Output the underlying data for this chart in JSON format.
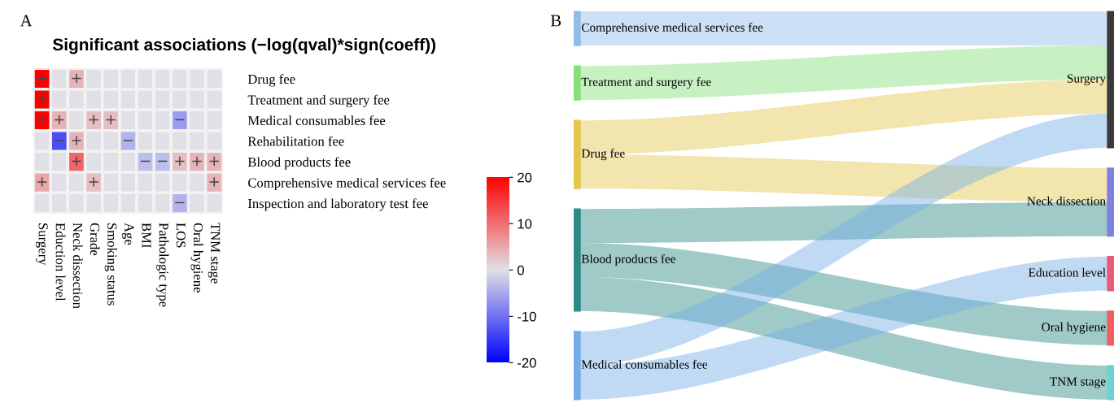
{
  "chart_data": [
    {
      "type": "heatmap",
      "title": "Significant associations (−log(qval)*sign(coeff))",
      "annotations": [
        "A"
      ],
      "categories": [
        "Surgery",
        "Eduction level",
        "Neck dissection",
        "Grade",
        "Smoking status",
        "Age",
        "BMI",
        "Pathologic type",
        "LOS",
        "Oral hygiene",
        "TNM stage"
      ],
      "y_categories": [
        "Drug fee",
        "Treatment and surgery fee",
        "Medical consumables fee",
        "Rehabilitation fee",
        "Blood products fee",
        "Comprehensive medical services fee",
        "Inspection and laboratory test fee"
      ],
      "cells": [
        [
          20,
          null,
          4,
          null,
          null,
          null,
          null,
          null,
          null,
          null,
          null
        ],
        [
          20,
          null,
          null,
          null,
          null,
          null,
          null,
          null,
          null,
          null,
          null
        ],
        [
          20,
          4,
          null,
          3,
          3,
          null,
          null,
          null,
          -6,
          null,
          null
        ],
        [
          null,
          -13,
          4,
          null,
          null,
          -4,
          null,
          null,
          null,
          null,
          null
        ],
        [
          null,
          null,
          11,
          null,
          null,
          null,
          -3,
          -3,
          3,
          4,
          4
        ],
        [
          5,
          null,
          null,
          3,
          null,
          null,
          null,
          null,
          null,
          null,
          4
        ],
        [
          null,
          null,
          null,
          null,
          null,
          null,
          null,
          null,
          -4,
          null,
          null
        ]
      ],
      "cell_labels": [
        [
          "+",
          null,
          "+",
          null,
          null,
          null,
          null,
          null,
          null,
          null,
          null
        ],
        [
          "+",
          null,
          null,
          null,
          null,
          null,
          null,
          null,
          null,
          null,
          null
        ],
        [
          "+",
          "+",
          null,
          "+",
          "+",
          null,
          null,
          null,
          "−",
          null,
          null
        ],
        [
          null,
          "−",
          "+",
          null,
          null,
          "−",
          null,
          null,
          null,
          null,
          null
        ],
        [
          null,
          null,
          "+",
          null,
          null,
          null,
          "−",
          "−",
          "+",
          "+",
          "+"
        ],
        [
          "+",
          null,
          null,
          "+",
          null,
          null,
          null,
          null,
          null,
          null,
          "+"
        ],
        [
          null,
          null,
          null,
          null,
          null,
          null,
          null,
          null,
          "−",
          null,
          null
        ]
      ],
      "clim": [
        -20,
        20
      ],
      "cticks": [
        -20,
        -10,
        0,
        10,
        20
      ]
    },
    {
      "type": "other",
      "annotations": [
        "B"
      ],
      "categories": [
        "Comprehensive medical services fee",
        "Treatment and surgery fee",
        "Drug fee",
        "Blood products fee",
        "Medical consumables fee"
      ],
      "y_categories": [
        "Surgery",
        "Neck dissection",
        "Education level",
        "Oral hygiene",
        "TNM stage"
      ],
      "colors": [
        "#8fbde8",
        "#86e07a",
        "#e3c64a",
        "#2a8a86",
        "#74ace6",
        "#3a3a3a",
        "#8080e0",
        "#e85c7a",
        "#f06060",
        "#6ad4d4"
      ],
      "cells": [
        [
          true,
          false,
          false,
          false,
          false
        ],
        [
          true,
          false,
          false,
          false,
          false
        ],
        [
          true,
          true,
          false,
          false,
          false
        ],
        [
          false,
          true,
          false,
          true,
          true
        ],
        [
          true,
          false,
          true,
          false,
          false
        ]
      ]
    }
  ]
}
